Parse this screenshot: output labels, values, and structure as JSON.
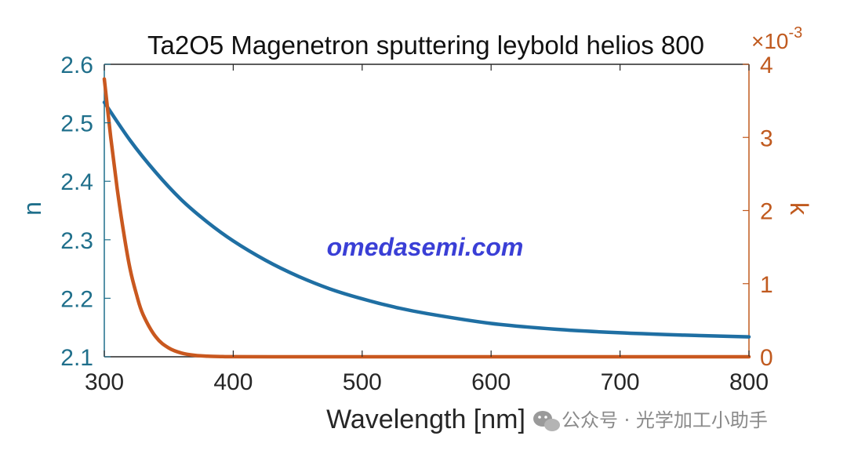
{
  "chart_data": {
    "type": "line",
    "title": "Ta2O5 Magenetron sputtering leybold helios 800",
    "xlabel": "Wavelength [nm]",
    "ylabel_left": "n",
    "ylabel_right": "k",
    "right_axis_multiplier": "×10",
    "right_axis_exponent": "-3",
    "xlim": [
      300,
      800
    ],
    "ylim_left": [
      2.1,
      2.6
    ],
    "ylim_right": [
      0,
      4
    ],
    "x_ticks": [
      "300",
      "400",
      "500",
      "600",
      "700",
      "800"
    ],
    "y_left_ticks": [
      "2.1",
      "2.2",
      "2.3",
      "2.4",
      "2.5",
      "2.6"
    ],
    "y_right_ticks": [
      "0",
      "1",
      "2",
      "3",
      "4"
    ],
    "grid": false,
    "series": [
      {
        "axis": "left",
        "color": "#1f6fa3",
        "x": [
          300,
          320,
          340,
          360,
          380,
          400,
          425,
          450,
          475,
          500,
          525,
          550,
          600,
          650,
          700,
          750,
          800
        ],
        "values": [
          2.535,
          2.47,
          2.415,
          2.368,
          2.33,
          2.298,
          2.265,
          2.238,
          2.216,
          2.199,
          2.185,
          2.174,
          2.157,
          2.147,
          2.141,
          2.137,
          2.134
        ]
      },
      {
        "axis": "right",
        "color": "#c9581f",
        "x": [
          300,
          305,
          310,
          315,
          320,
          325,
          330,
          340,
          350,
          360,
          370,
          380,
          390,
          400,
          450,
          500,
          600,
          700,
          800
        ],
        "values": [
          3.8,
          3.0,
          2.3,
          1.7,
          1.2,
          0.85,
          0.58,
          0.27,
          0.12,
          0.05,
          0.02,
          0.008,
          0.003,
          0.001,
          0,
          0,
          0,
          0,
          0
        ]
      }
    ]
  },
  "watermark": "omedasemi.com",
  "footer_text": "公众号 · 光学加工小助手"
}
